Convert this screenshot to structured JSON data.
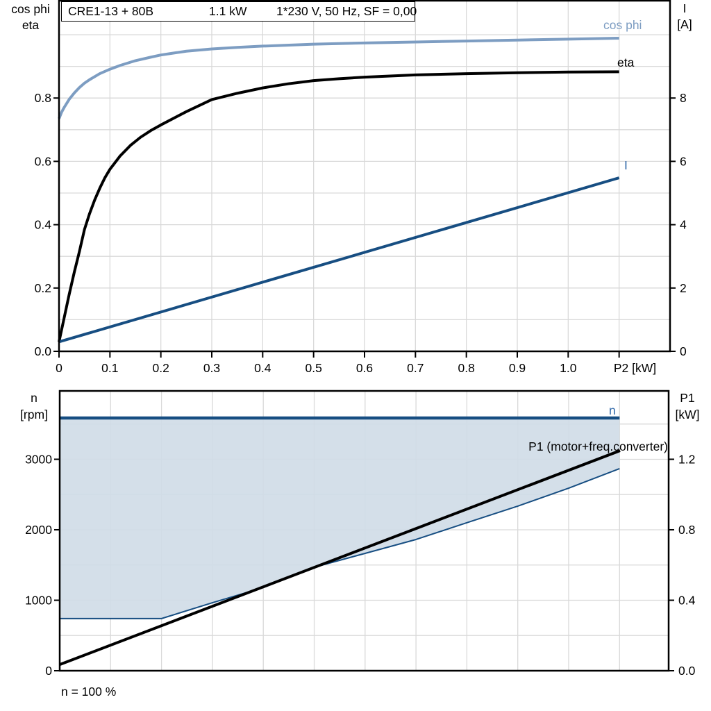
{
  "colors": {
    "background": "#ffffff",
    "grid": "#d9d9d9",
    "axis": "#000000",
    "cos_phi_curve": "#7d9dc2",
    "dark_blue_curve": "#174e82",
    "blue_label": "#2f67a8",
    "area_fill": "#cfdbe7"
  },
  "top_chart": {
    "title_part1": "CRE1-13 + 80B",
    "title_part2": "1.1 kW",
    "title_part3": "1*230 V, 50 Hz, SF = 0,00",
    "left_axis_label_line1": "cos phi",
    "left_axis_label_line2": "eta",
    "right_axis_label_line1": "I",
    "right_axis_label_line2": "[A]",
    "x_axis_unit_label": "P2 [kW]",
    "curve_label_cos_phi": "cos phi",
    "curve_label_eta": "eta",
    "curve_label_current": "I"
  },
  "bottom_chart": {
    "left_axis_label_line1": "n",
    "left_axis_label_line2": "[rpm]",
    "right_axis_label_line1": "P1",
    "right_axis_label_line2": "[kW]",
    "curve_label_n": "n",
    "curve_label_p1": "P1 (motor+freq.converter)",
    "x_note": "n = 100 %"
  },
  "chart_data": [
    {
      "type": "line",
      "title": "CRE1-13 + 80B   1.1 kW   1*230 V, 50 Hz, SF = 0,00",
      "xlabel": "P2 [kW]",
      "xlim": [
        0,
        1.2
      ],
      "ylabel_left": "cos phi / eta",
      "ylim_left": [
        0,
        1.107
      ],
      "ylabel_right": "I [A]",
      "ylim_right": [
        0,
        11.07
      ],
      "grid": true,
      "grid_x": [
        0.1,
        0.2,
        0.3,
        0.4,
        0.5,
        0.6,
        0.7,
        0.8,
        0.9,
        1.0,
        1.1
      ],
      "grid_left": [
        0.1,
        0.2,
        0.3,
        0.4,
        0.5,
        0.6,
        0.7,
        0.8,
        0.9,
        1.0
      ],
      "x_ticks": [
        {
          "v": 0,
          "t": "0"
        },
        {
          "v": 0.1,
          "t": "0.1"
        },
        {
          "v": 0.2,
          "t": "0.2"
        },
        {
          "v": 0.3,
          "t": "0.3"
        },
        {
          "v": 0.4,
          "t": "0.4"
        },
        {
          "v": 0.5,
          "t": "0.5"
        },
        {
          "v": 0.6,
          "t": "0.6"
        },
        {
          "v": 0.7,
          "t": "0.7"
        },
        {
          "v": 0.8,
          "t": "0.8"
        },
        {
          "v": 0.9,
          "t": "0.9"
        },
        {
          "v": 1.0,
          "t": "1.0"
        },
        {
          "v": 1.1,
          "t": ""
        }
      ],
      "left_ticks": [
        {
          "v": 0,
          "t": "0.0"
        },
        {
          "v": 0.2,
          "t": "0.2"
        },
        {
          "v": 0.4,
          "t": "0.4"
        },
        {
          "v": 0.6,
          "t": "0.6"
        },
        {
          "v": 0.8,
          "t": "0.8"
        }
      ],
      "right_ticks": [
        {
          "v": 0,
          "t": "0"
        },
        {
          "v": 2,
          "t": "2"
        },
        {
          "v": 4,
          "t": "4"
        },
        {
          "v": 6,
          "t": "6"
        },
        {
          "v": 8,
          "t": "8"
        }
      ],
      "series": [
        {
          "name": "cos phi",
          "axis": "left",
          "color": "#7d9dc2",
          "width": 4,
          "points": [
            [
              0,
              0.735
            ],
            [
              0.005,
              0.755
            ],
            [
              0.01,
              0.77
            ],
            [
              0.02,
              0.796
            ],
            [
              0.03,
              0.816
            ],
            [
              0.04,
              0.833
            ],
            [
              0.05,
              0.847
            ],
            [
              0.06,
              0.858
            ],
            [
              0.08,
              0.877
            ],
            [
              0.1,
              0.891
            ],
            [
              0.12,
              0.903
            ],
            [
              0.15,
              0.918
            ],
            [
              0.18,
              0.929
            ],
            [
              0.2,
              0.936
            ],
            [
              0.25,
              0.948
            ],
            [
              0.3,
              0.955
            ],
            [
              0.35,
              0.96
            ],
            [
              0.4,
              0.964
            ],
            [
              0.5,
              0.97
            ],
            [
              0.6,
              0.974
            ],
            [
              0.7,
              0.977
            ],
            [
              0.8,
              0.98
            ],
            [
              0.9,
              0.983
            ],
            [
              1.0,
              0.986
            ],
            [
              1.1,
              0.989
            ]
          ]
        },
        {
          "name": "eta",
          "axis": "left",
          "color": "#000000",
          "width": 4,
          "points": [
            [
              0,
              0.03
            ],
            [
              0.01,
              0.105
            ],
            [
              0.02,
              0.18
            ],
            [
              0.03,
              0.25
            ],
            [
              0.04,
              0.315
            ],
            [
              0.05,
              0.385
            ],
            [
              0.06,
              0.435
            ],
            [
              0.07,
              0.478
            ],
            [
              0.08,
              0.515
            ],
            [
              0.09,
              0.548
            ],
            [
              0.1,
              0.575
            ],
            [
              0.12,
              0.617
            ],
            [
              0.14,
              0.65
            ],
            [
              0.16,
              0.676
            ],
            [
              0.18,
              0.697
            ],
            [
              0.2,
              0.715
            ],
            [
              0.25,
              0.757
            ],
            [
              0.3,
              0.795
            ],
            [
              0.35,
              0.815
            ],
            [
              0.4,
              0.832
            ],
            [
              0.45,
              0.845
            ],
            [
              0.5,
              0.855
            ],
            [
              0.55,
              0.861
            ],
            [
              0.6,
              0.866
            ],
            [
              0.7,
              0.873
            ],
            [
              0.8,
              0.877
            ],
            [
              0.9,
              0.88
            ],
            [
              1.0,
              0.882
            ],
            [
              1.1,
              0.883
            ]
          ]
        },
        {
          "name": "I",
          "axis": "right",
          "color": "#174e82",
          "width": 4,
          "points": [
            [
              0,
              0.3
            ],
            [
              1.1,
              5.48
            ]
          ]
        }
      ]
    },
    {
      "type": "line+area",
      "title": "",
      "xlabel": "n = 100 %",
      "xlim": [
        0,
        1.197
      ],
      "ylabel_left": "n [rpm]",
      "ylim_left": [
        0,
        3970
      ],
      "ylabel_right": "P1 [kW]",
      "ylim_right": [
        0,
        1.588
      ],
      "grid": true,
      "grid_x": [
        0.1,
        0.2,
        0.3,
        0.4,
        0.5,
        0.6,
        0.7,
        0.8,
        0.9,
        1.0,
        1.1
      ],
      "grid_left_rpm": [
        500,
        1000,
        1500,
        2000,
        2500,
        3000,
        3500
      ],
      "left_ticks": [
        {
          "v": 0,
          "t": "0"
        },
        {
          "v": 1000,
          "t": "1000"
        },
        {
          "v": 2000,
          "t": "2000"
        },
        {
          "v": 3000,
          "t": "3000"
        }
      ],
      "right_ticks": [
        {
          "v": 0,
          "t": "0.0"
        },
        {
          "v": 0.4,
          "t": "0.4"
        },
        {
          "v": 0.8,
          "t": "0.8"
        },
        {
          "v": 1.2,
          "t": "1.2"
        }
      ],
      "series": [
        {
          "name": "n",
          "axis": "left",
          "color": "#174e82",
          "width": 4.5,
          "points": [
            [
              0,
              3586
            ],
            [
              1.1,
              3586
            ]
          ]
        },
        {
          "name": "speed-range-lower-bound",
          "axis": "left",
          "color": "#174e82",
          "width": 2,
          "points": [
            [
              0,
              740
            ],
            [
              0.2,
              740
            ],
            [
              0.3,
              965
            ],
            [
              0.4,
              1180
            ],
            [
              0.5,
              1468
            ],
            [
              0.6,
              1665
            ],
            [
              0.7,
              1862
            ],
            [
              0.8,
              2100
            ],
            [
              0.9,
              2335
            ],
            [
              1.0,
              2590
            ],
            [
              1.1,
              2867
            ]
          ]
        },
        {
          "name": "P1 (motor+freq.converter)",
          "axis": "right",
          "color": "#000000",
          "width": 4,
          "points": [
            [
              0,
              0.035
            ],
            [
              1.101,
              1.249
            ]
          ]
        }
      ],
      "area": {
        "between": [
          "n",
          "speed-range-lower-bound"
        ],
        "fill": "#cfdbe7",
        "opacity": 0.9
      }
    }
  ]
}
